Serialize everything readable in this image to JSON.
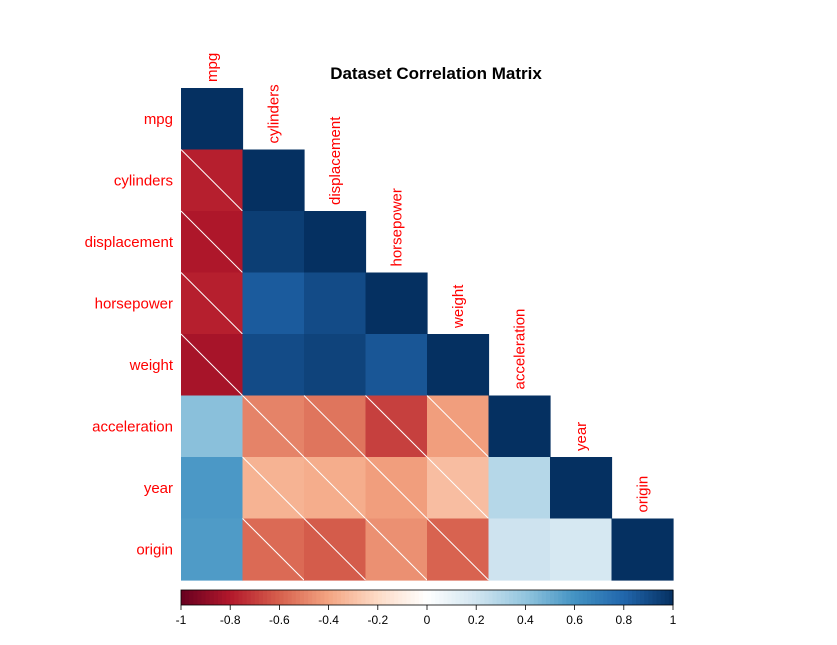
{
  "chart_data": {
    "type": "heatmap",
    "title": "Dataset Correlation Matrix",
    "layout": "lower-triangle",
    "variables": [
      "mpg",
      "cylinders",
      "displacement",
      "horsepower",
      "weight",
      "acceleration",
      "year",
      "origin"
    ],
    "matrix": [
      [
        1.0,
        -0.78,
        -0.81,
        -0.78,
        -0.83,
        0.42,
        0.58,
        0.57
      ],
      [
        -0.78,
        1.0,
        0.95,
        0.84,
        0.9,
        -0.5,
        -0.35,
        -0.57
      ],
      [
        -0.81,
        0.95,
        1.0,
        0.9,
        0.93,
        -0.54,
        -0.37,
        -0.61
      ],
      [
        -0.78,
        0.84,
        0.9,
        1.0,
        0.86,
        -0.69,
        -0.42,
        -0.46
      ],
      [
        -0.83,
        0.9,
        0.93,
        0.86,
        1.0,
        -0.42,
        -0.31,
        -0.59
      ],
      [
        0.42,
        -0.5,
        -0.54,
        -0.69,
        -0.42,
        1.0,
        0.29,
        0.21
      ],
      [
        0.58,
        -0.35,
        -0.37,
        -0.42,
        -0.31,
        0.29,
        1.0,
        0.18
      ],
      [
        0.57,
        -0.57,
        -0.61,
        -0.46,
        -0.59,
        0.21,
        0.18,
        1.0
      ]
    ],
    "negative_cells_hatched": true,
    "colorscale": {
      "range": [
        -1,
        1
      ],
      "ticks": [
        "-1",
        "-0.8",
        "-0.6",
        "-0.4",
        "-0.2",
        "0",
        "0.2",
        "0.4",
        "0.6",
        "0.8",
        "1"
      ],
      "stops": [
        "#67001F",
        "#B2182B",
        "#D6604D",
        "#F4A582",
        "#FDDBC7",
        "#FFFFFF",
        "#D1E5F0",
        "#92C5DE",
        "#4393C3",
        "#2166AC",
        "#053061"
      ]
    },
    "colors": {
      "label": "#ff0000",
      "hatch": "#ffffff"
    },
    "legend": "bottom"
  }
}
